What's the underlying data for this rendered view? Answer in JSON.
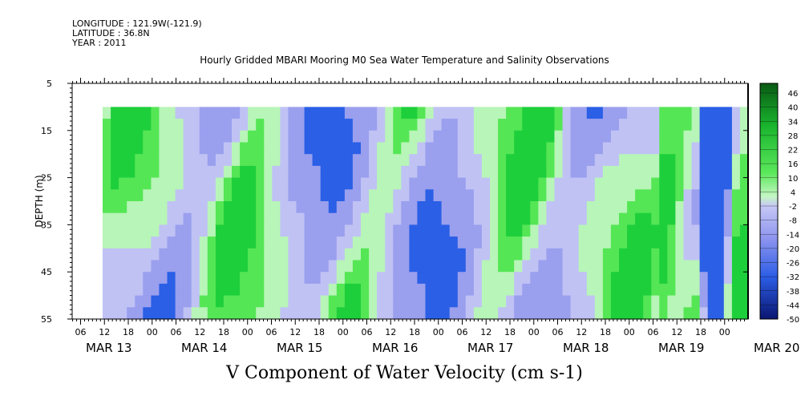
{
  "header": {
    "longitude": "LONGITUDE : 121.9W(-121.9)",
    "latitude": "LATITUDE : 36.8N",
    "year": "YEAR : 2011",
    "title": "Hourly Gridded MBARI Mooring M0 Sea Water Temperature and Salinity Observations"
  },
  "chart_data": {
    "type": "heatmap",
    "title": "V Component of Water Velocity (cm s-1)",
    "ylabel": "DEPTH (m)",
    "y_ticks": [
      "5",
      "15",
      "25",
      "35",
      "45",
      "55"
    ],
    "y_tick_values": [
      5,
      15,
      25,
      35,
      45,
      55
    ],
    "ylim": [
      5,
      55
    ],
    "y_inverted": true,
    "hour_ticks": [
      "06",
      "12",
      "18",
      "00",
      "06",
      "12",
      "18",
      "00",
      "06",
      "12",
      "18",
      "00",
      "06",
      "12",
      "18",
      "00",
      "06",
      "12",
      "18",
      "00",
      "06",
      "12",
      "18",
      "00",
      "06",
      "12",
      "18",
      "00"
    ],
    "day_labels": [
      "MAR 13",
      "MAR 14",
      "MAR 15",
      "MAR 16",
      "MAR 17",
      "MAR 18",
      "MAR 19",
      "MAR 20"
    ],
    "data_depth_range": [
      10,
      55
    ],
    "colorbar_labels": [
      "46",
      "40",
      "34",
      "28",
      "22",
      "16",
      "10",
      "4",
      "-2",
      "-8",
      "-14",
      "-20",
      "-26",
      "-32",
      "-38",
      "-44",
      "-50"
    ],
    "colorbar_range": [
      -50,
      46
    ],
    "colors": {
      "positive_light": "#b8f5b8",
      "positive_mid": "#55e655",
      "positive_strong": "#1ecf3c",
      "negative_light": "#c0c2f4",
      "negative_mid": "#9a9fee",
      "negative_strong": "#2a5fe6",
      "colorbar_top": "#0a5a14",
      "colorbar_bottom": "#0a1670"
    }
  }
}
